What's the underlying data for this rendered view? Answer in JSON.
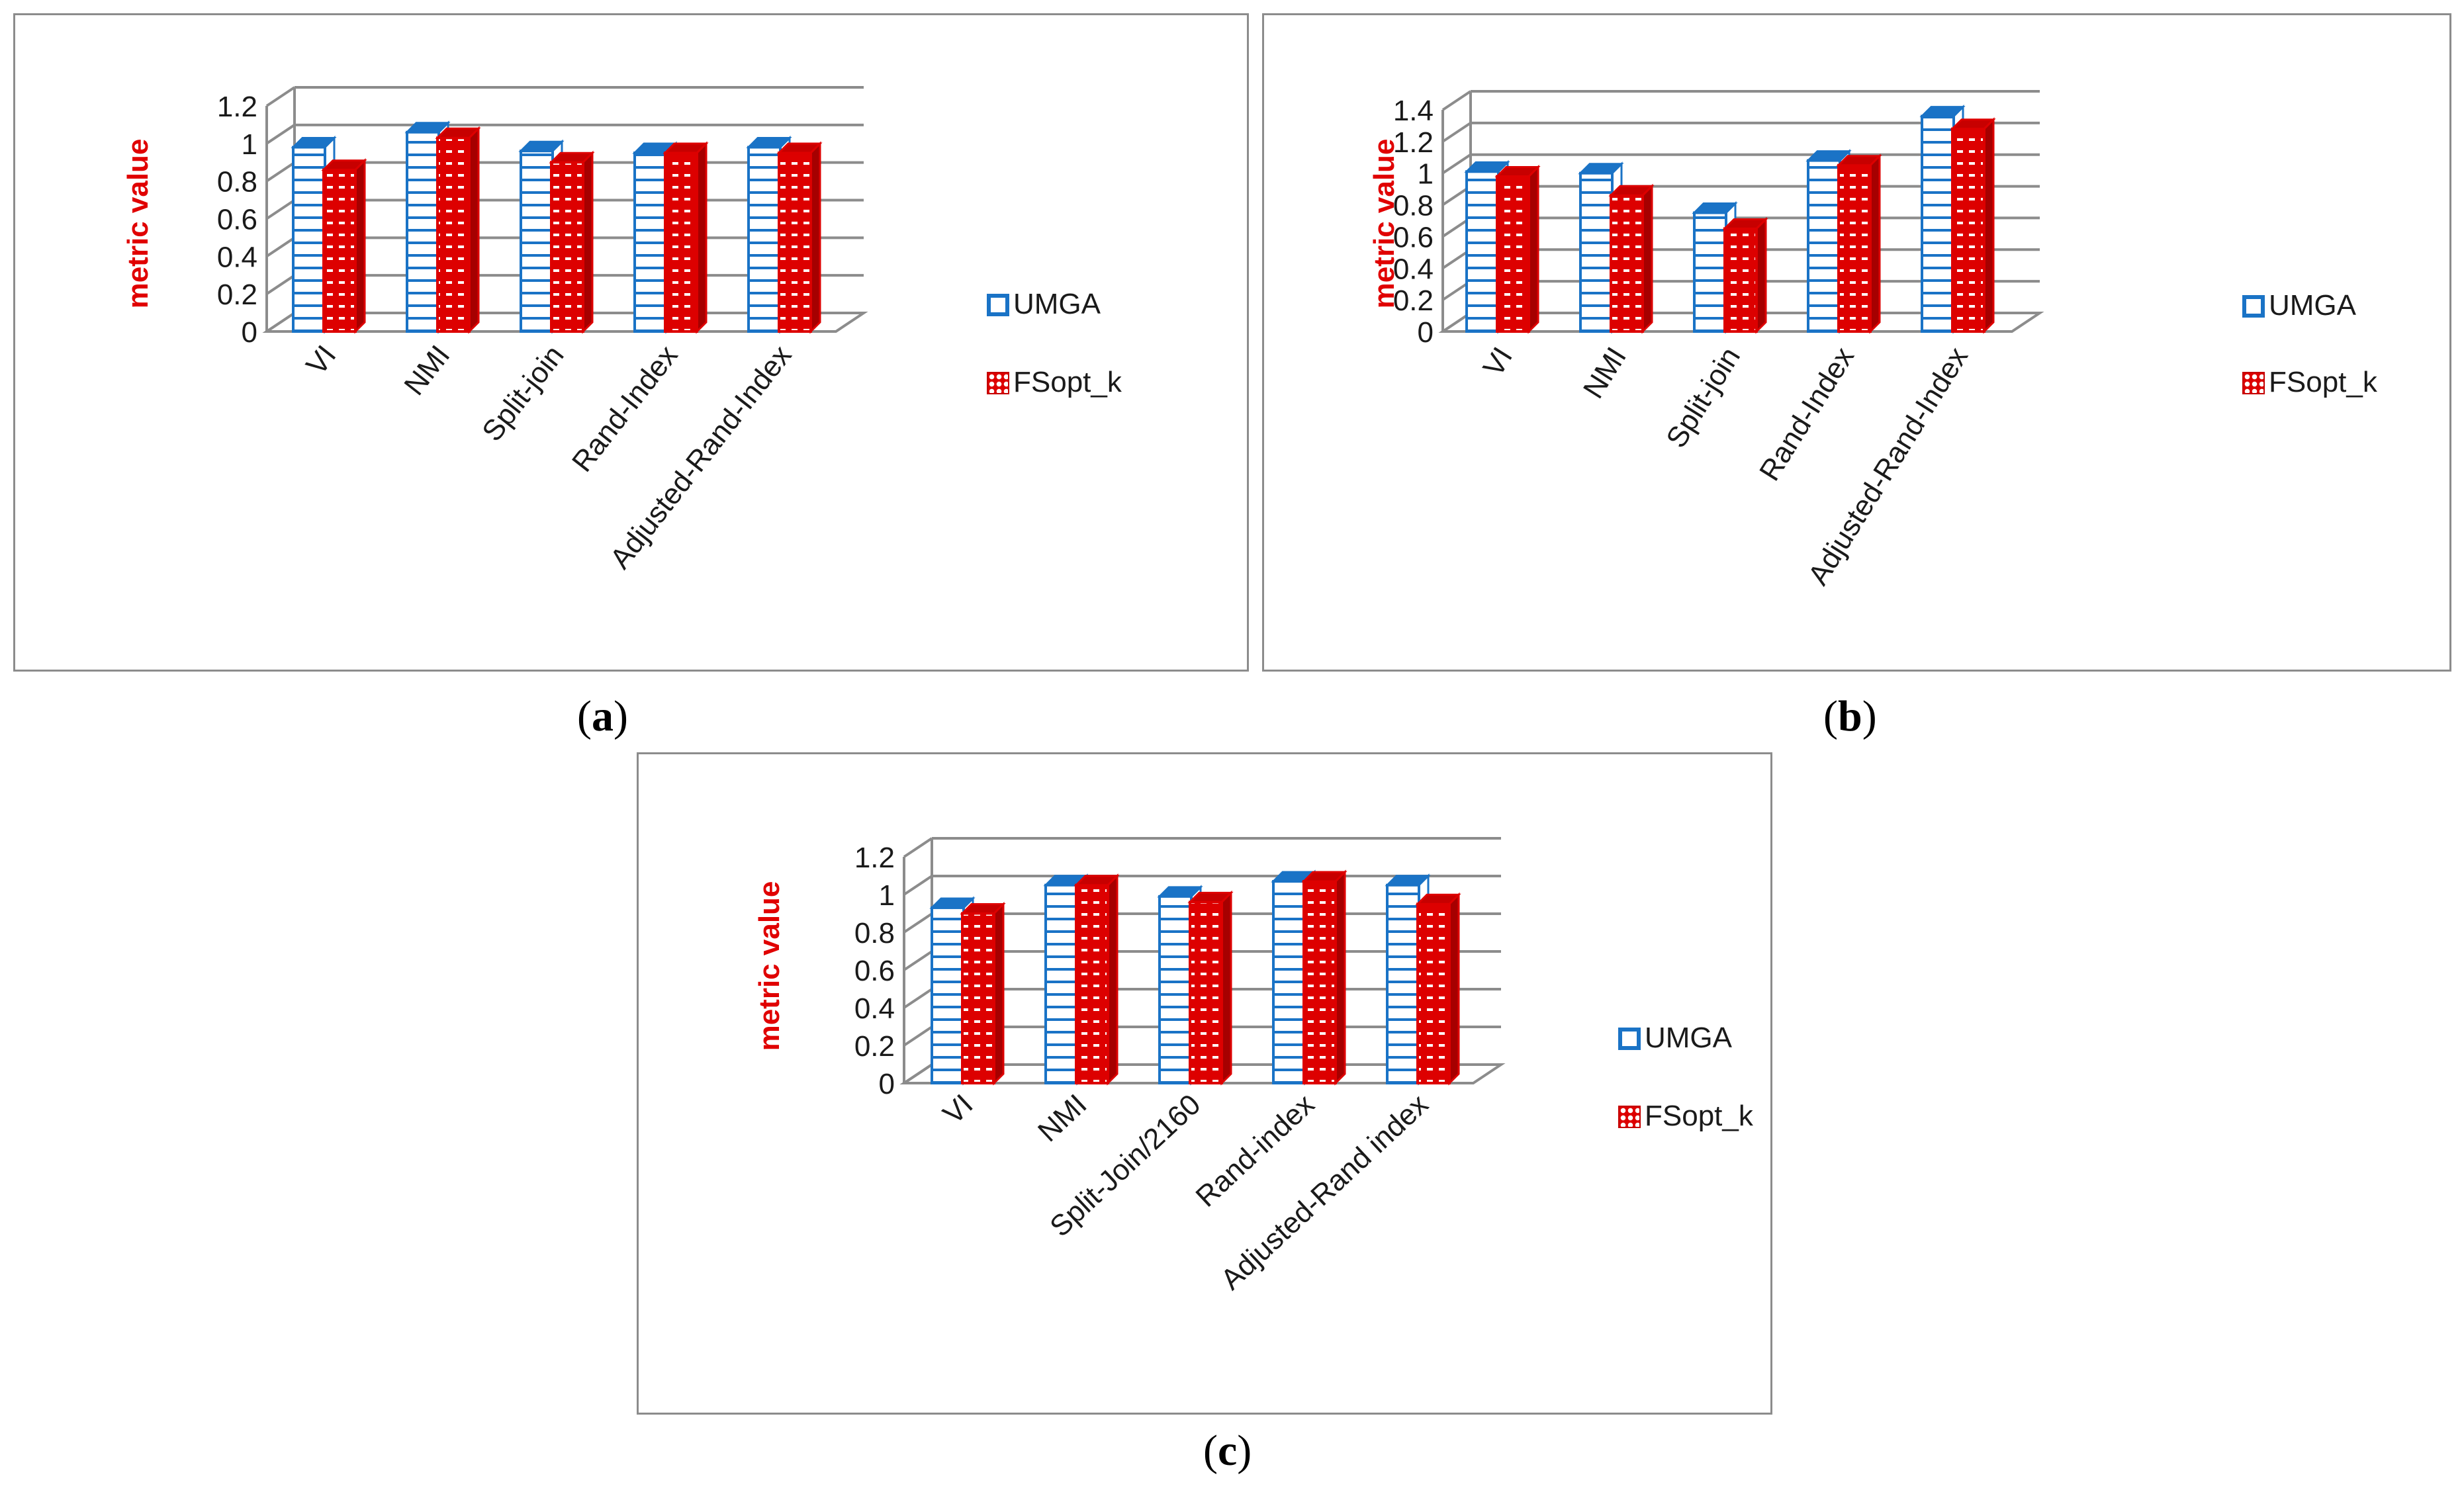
{
  "captions": {
    "a": "a",
    "b": "b",
    "c": "c"
  },
  "legend": {
    "series1": "UMGA",
    "series2": "FSopt_k"
  },
  "colors": {
    "umga": "#1a73c6",
    "fsopt": "#dd0000",
    "axis_label": "#e00000",
    "grid": "#8c8c8c"
  },
  "chart_data": [
    {
      "id": "a",
      "type": "bar",
      "style": "3d-clustered-column",
      "title": "",
      "xlabel": "",
      "ylabel": "metric value",
      "ylim": [
        0,
        1.2
      ],
      "yticks": [
        "0",
        "0.2",
        "0.4",
        "0.6",
        "0.8",
        "1",
        "1.2"
      ],
      "categories": [
        "VI",
        "NMI",
        "Split-join",
        "Rand-Index",
        "Adjusted-Rand-Index"
      ],
      "series": [
        {
          "name": "UMGA",
          "values": [
            0.98,
            1.06,
            0.96,
            0.95,
            0.98
          ]
        },
        {
          "name": "FSopt_k",
          "values": [
            0.86,
            1.03,
            0.9,
            0.95,
            0.95
          ]
        }
      ],
      "legend_position": "right"
    },
    {
      "id": "b",
      "type": "bar",
      "style": "3d-clustered-column",
      "title": "",
      "xlabel": "",
      "ylabel": "metric value",
      "ylim": [
        0,
        1.4
      ],
      "yticks": [
        "0",
        "0.2",
        "0.4",
        "0.6",
        "0.8",
        "1",
        "1.2",
        "1.4"
      ],
      "categories": [
        "VI",
        "NMI",
        "Split-join",
        "Rand-Index",
        "Adjusted-Rand-Index"
      ],
      "series": [
        {
          "name": "UMGA",
          "values": [
            1.01,
            1.0,
            0.75,
            1.08,
            1.36
          ]
        },
        {
          "name": "FSopt_k",
          "values": [
            0.98,
            0.86,
            0.65,
            1.05,
            1.28
          ]
        }
      ],
      "legend_position": "right"
    },
    {
      "id": "c",
      "type": "bar",
      "style": "3d-clustered-column",
      "title": "",
      "xlabel": "",
      "ylabel": "metric value",
      "ylim": [
        0,
        1.2
      ],
      "yticks": [
        "0",
        "0.2",
        "0.4",
        "0.6",
        "0.8",
        "1",
        "1.2"
      ],
      "categories": [
        "VI",
        "NMI",
        "Split-Join/2160",
        "Rand-index",
        "Adjusted-Rand index"
      ],
      "series": [
        {
          "name": "UMGA",
          "values": [
            0.93,
            1.05,
            0.99,
            1.07,
            1.05
          ]
        },
        {
          "name": "FSopt_k",
          "values": [
            0.9,
            1.05,
            0.96,
            1.07,
            0.95
          ]
        }
      ],
      "legend_position": "right"
    }
  ]
}
